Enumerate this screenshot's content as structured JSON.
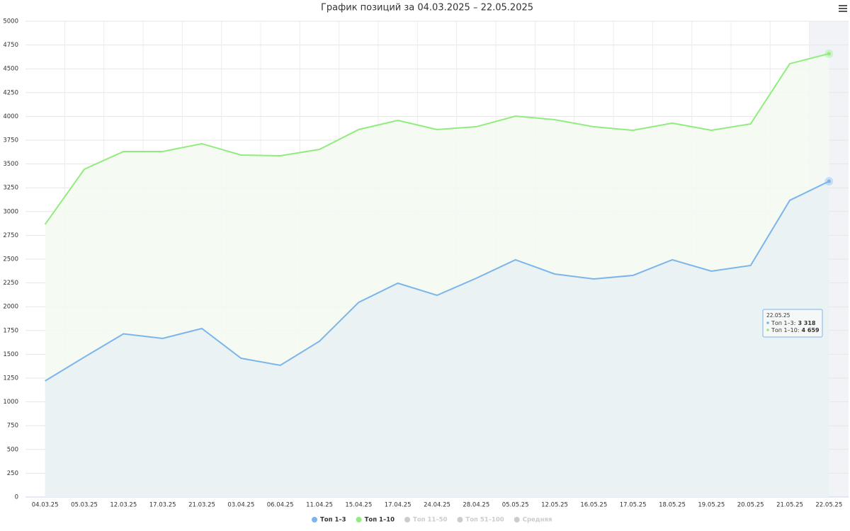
{
  "chart_data": {
    "type": "area-line",
    "title": "График позиций за 04.03.2025 – 22.05.2025",
    "categories": [
      "04.03.25",
      "05.03.25",
      "12.03.25",
      "17.03.25",
      "21.03.25",
      "03.04.25",
      "06.04.25",
      "11.04.25",
      "15.04.25",
      "17.04.25",
      "24.04.25",
      "28.04.25",
      "05.05.25",
      "12.05.25",
      "16.05.25",
      "17.05.25",
      "18.05.25",
      "19.05.25",
      "20.05.25",
      "21.05.25",
      "22.05.25"
    ],
    "series": [
      {
        "name": "Топ 1–3",
        "color": "#7cb5ec",
        "fill": "#e9f1f4",
        "values": [
          1220,
          1470,
          1715,
          1667,
          1771,
          1458,
          1384,
          1637,
          2046,
          2247,
          2120,
          2299,
          2493,
          2344,
          2292,
          2329,
          2493,
          2374,
          2433,
          3118,
          3318
        ]
      },
      {
        "name": "Топ 1–10",
        "color": "#90ed7d",
        "fill": "#f4faf2",
        "values": [
          2865,
          3445,
          3631,
          3631,
          3713,
          3594,
          3586,
          3653,
          3862,
          3958,
          3862,
          3891,
          4003,
          3966,
          3891,
          3854,
          3929,
          3854,
          3921,
          4554,
          4659
        ]
      }
    ],
    "hidden_legend": [
      "Топ 11–50",
      "Топ 51–100",
      "Средняя"
    ],
    "ylim": [
      0,
      5000
    ],
    "yticks": [
      0,
      250,
      500,
      750,
      1000,
      1250,
      1500,
      1750,
      2000,
      2250,
      2500,
      2750,
      3000,
      3250,
      3500,
      3750,
      4000,
      4250,
      4500,
      4750,
      5000
    ],
    "grid": true,
    "tooltip": {
      "title": "22.05.25",
      "rows": [
        {
          "label": "Топ 1–3:",
          "value_label": "3 318"
        },
        {
          "label": "Топ 1–10:",
          "value_label": "4 659"
        }
      ]
    }
  }
}
